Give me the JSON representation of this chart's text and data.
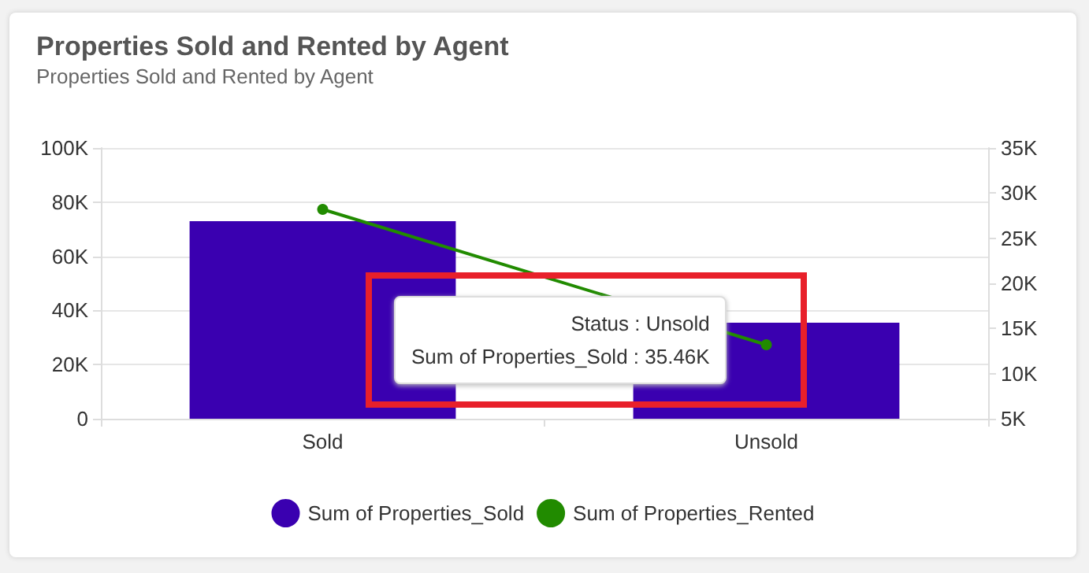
{
  "chart_data": {
    "type": "bar",
    "title": "Properties Sold and Rented by Agent",
    "subtitle": "Properties Sold and Rented by Agent",
    "categories": [
      "Sold",
      "Unsold"
    ],
    "series": [
      {
        "name": "Sum of Properties_Sold",
        "color": "#3a00b0",
        "values": [
          73000,
          35460
        ]
      },
      {
        "name": "Sum of Properties_Rented",
        "type": "line",
        "axis": "y2",
        "color": "#218b00",
        "values": [
          28200,
          13200
        ]
      }
    ],
    "ylim": [
      0,
      100000
    ],
    "yticks": [
      {
        "value": 0,
        "label": "0"
      },
      {
        "value": 20000,
        "label": "20K"
      },
      {
        "value": 40000,
        "label": "40K"
      },
      {
        "value": 60000,
        "label": "60K"
      },
      {
        "value": 80000,
        "label": "80K"
      },
      {
        "value": 100000,
        "label": "100K"
      }
    ],
    "y2lim": [
      5000,
      35000
    ],
    "y2ticks": [
      {
        "value": 5000,
        "label": "5K"
      },
      {
        "value": 10000,
        "label": "10K"
      },
      {
        "value": 15000,
        "label": "15K"
      },
      {
        "value": 20000,
        "label": "20K"
      },
      {
        "value": 25000,
        "label": "25K"
      },
      {
        "value": 30000,
        "label": "30K"
      },
      {
        "value": 35000,
        "label": "35K"
      }
    ],
    "annotations": [
      "Status : Unsold",
      "Sum of Properties_Sold : 35.46K"
    ],
    "grid": "y",
    "legend": "bottom",
    "marker": "circle",
    "line_style": "solid"
  }
}
